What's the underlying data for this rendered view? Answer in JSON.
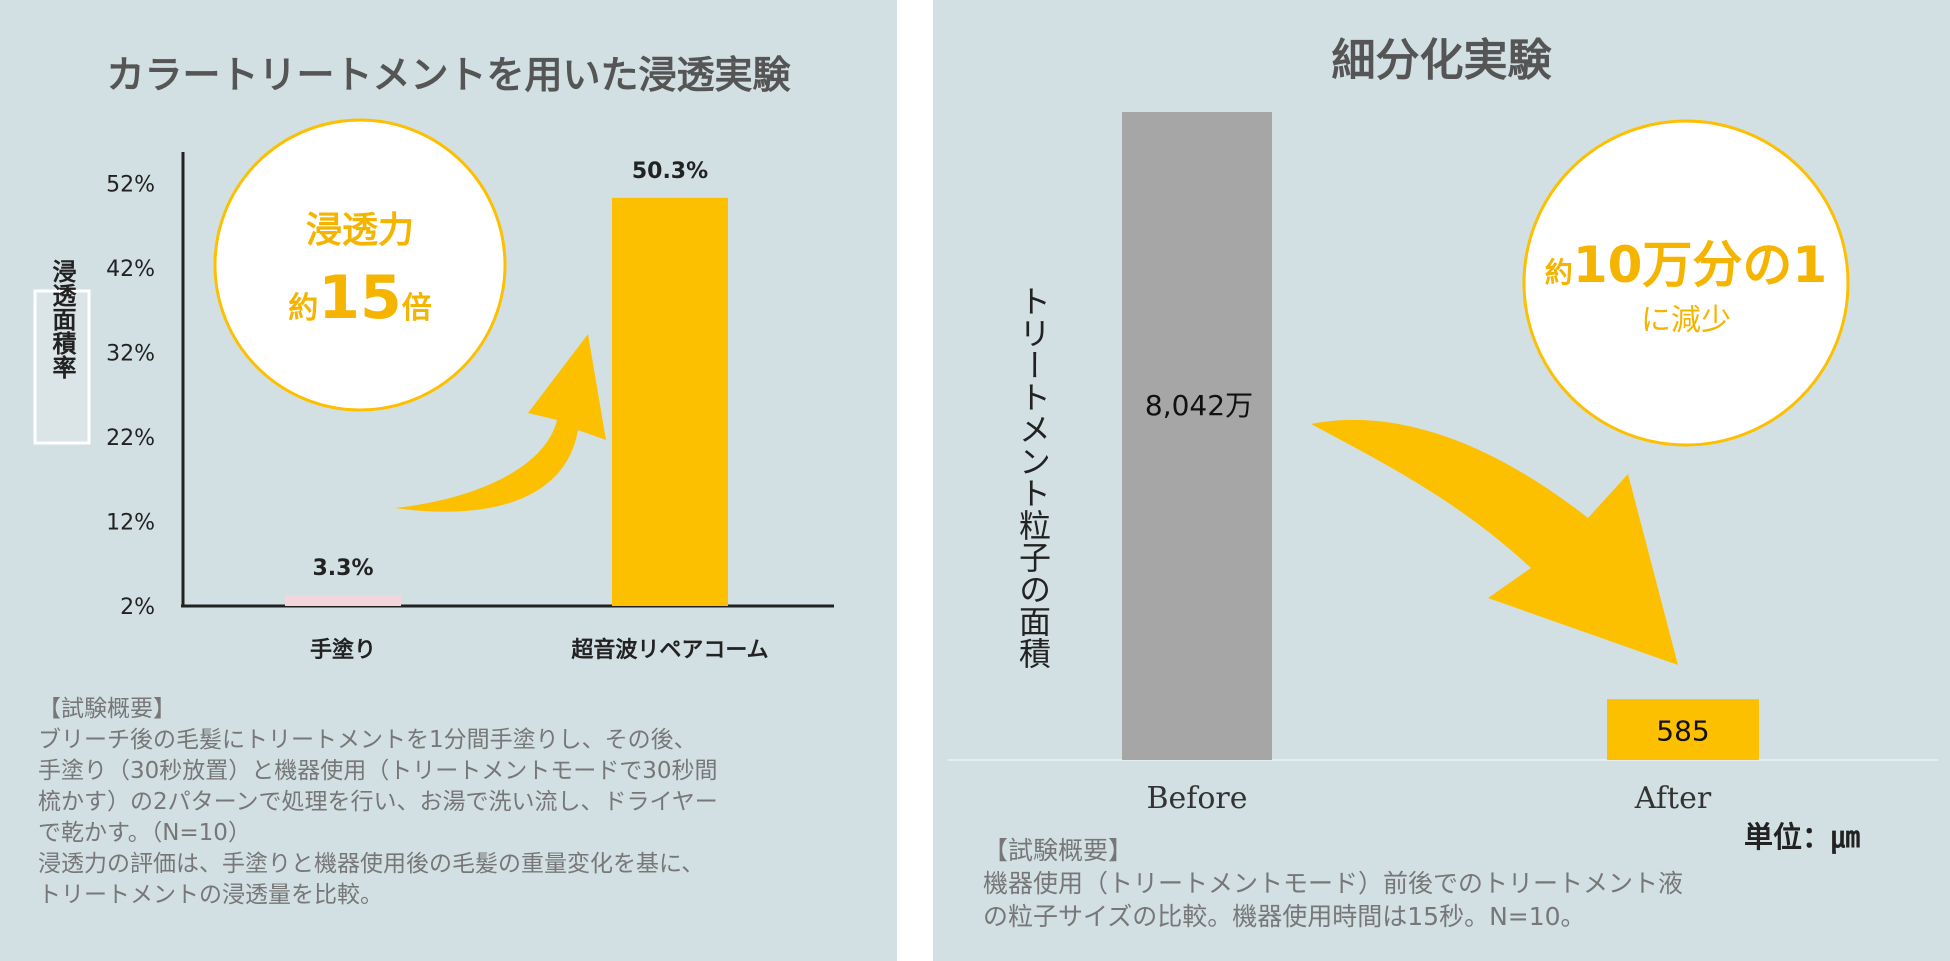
{
  "colors": {
    "panel_bg": "#d2e0e4",
    "accent": "#fdc000",
    "gray_bar": "#a6a6a6",
    "axis": "#222222"
  },
  "left": {
    "title": "カラートリートメントを用いた浸透実験",
    "callout": {
      "line1": "浸透力",
      "prefix": "約",
      "big": "15",
      "suffix": "倍"
    },
    "notes": {
      "heading": "【試験概要】",
      "body": "ブリーチ後の毛髪にトリートメントを1分間手塗りし、その後、\n手塗り（30秒放置）と機器使用（トリートメントモードで30秒間\n梳かす）の2パターンで処理を行い、お湯で洗い流し、ドライヤー\nで乾かす。（N=10）\n浸透力の評価は、手塗りと機器使用後の毛髪の重量変化を基に、\nトリートメントの浸透量を比較。"
    }
  },
  "right": {
    "title": "細分化実験",
    "callout": {
      "prefix": "約",
      "big": "10万分の1",
      "line2": "に減少"
    },
    "unit": "単位：㎛",
    "notes": {
      "heading": "【試験概要】",
      "body": "機器使用（トリートメントモード）前後でのトリートメント液\nの粒子サイズの比較。機器使用時間は15秒。N=10。"
    }
  },
  "chart_data": [
    {
      "type": "bar",
      "categories": [
        "手塗り",
        "超音波リペアコーム"
      ],
      "values": [
        3.3,
        50.3
      ],
      "data_labels": [
        "3.3%",
        "50.3%"
      ],
      "ylabel": "浸透面積率",
      "yticks": [
        "2%",
        "12%",
        "22%",
        "32%",
        "42%",
        "52%"
      ],
      "ytick_values": [
        2,
        12,
        22,
        32,
        42,
        52
      ],
      "ylim": [
        2,
        56
      ],
      "bar_colors": [
        "#f2d6dc",
        "#fdc000"
      ],
      "grid": false
    },
    {
      "type": "bar",
      "categories": [
        "Before",
        "After"
      ],
      "values": [
        80420000,
        585
      ],
      "data_labels": [
        "8,042万",
        "585"
      ],
      "ylabel": "トリートメント粒子の面積",
      "bar_colors": [
        "#a6a6a6",
        "#fdc000"
      ],
      "grid": false
    }
  ]
}
